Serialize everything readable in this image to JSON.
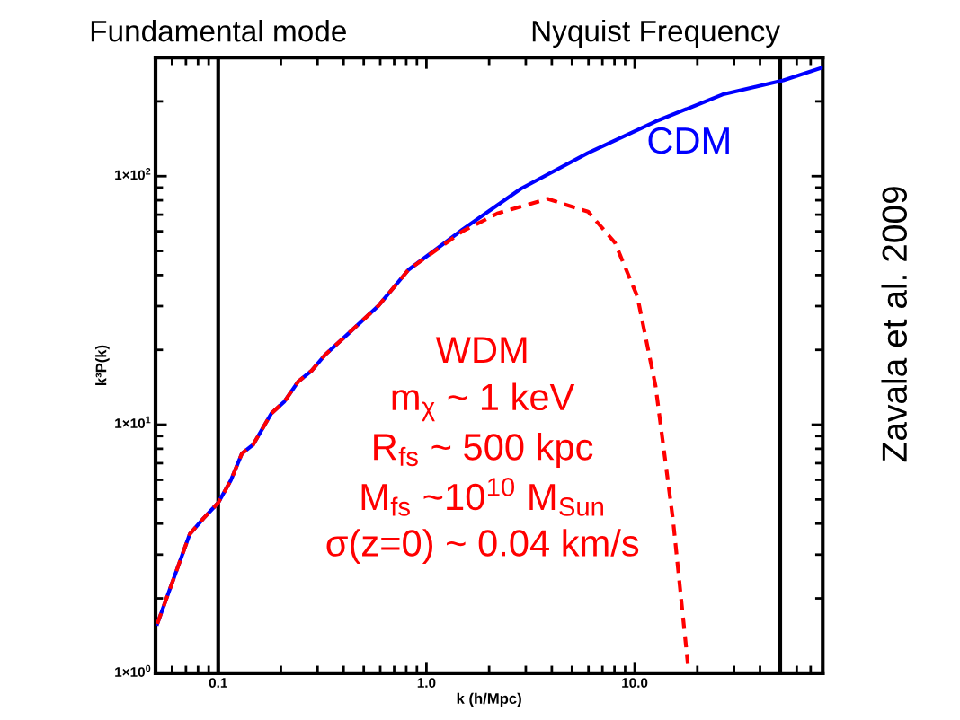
{
  "chart_data": {
    "type": "line",
    "xlabel": "k (h/Mpc)",
    "ylabel": "k³P(k)",
    "log": "xy",
    "xlim": [
      0.05,
      80
    ],
    "ylim": [
      1,
      300
    ],
    "xticks": [
      {
        "value": 0.1,
        "label": "0.1"
      },
      {
        "value": 1.0,
        "label": "1.0"
      },
      {
        "value": 10.0,
        "label": "10.0"
      }
    ],
    "yticks": [
      {
        "value": 1,
        "label": "1×10$^{0}$"
      },
      {
        "value": 10,
        "label": "1×10$^{1}$"
      },
      {
        "value": 100,
        "label": "1×10$^{2}$"
      }
    ],
    "grid": false,
    "series": [
      {
        "name": "CDM",
        "color": "#0000ff",
        "line_style": "solid",
        "x": [
          0.051,
          0.073,
          0.085,
          0.1,
          0.115,
          0.13,
          0.147,
          0.18,
          0.208,
          0.242,
          0.281,
          0.326,
          0.418,
          0.59,
          0.82,
          1.49,
          2.84,
          5.97,
          12.6,
          26.4,
          51.7,
          80
        ],
        "values": [
          1.58,
          3.63,
          4.2,
          4.85,
          5.97,
          7.66,
          8.3,
          11.1,
          12.4,
          14.9,
          16.5,
          19.1,
          23.1,
          30.2,
          42,
          61,
          89,
          124,
          166,
          213,
          243,
          274
        ]
      },
      {
        "name": "WDM",
        "color": "#ff0000",
        "line_style": "dashed",
        "x": [
          0.051,
          0.073,
          0.085,
          0.1,
          0.115,
          0.13,
          0.147,
          0.18,
          0.208,
          0.242,
          0.281,
          0.326,
          0.418,
          0.59,
          0.82,
          1.49,
          2.21,
          3.82,
          5.97,
          8.04,
          10.3,
          12.6,
          15.3,
          18.0
        ],
        "values": [
          1.58,
          3.63,
          4.2,
          4.85,
          5.97,
          7.66,
          8.3,
          11.1,
          12.4,
          14.9,
          16.5,
          19.1,
          23.1,
          30.2,
          42,
          60,
          71,
          81,
          72,
          54,
          32.8,
          14.3,
          4.1,
          1.09
        ]
      }
    ],
    "ref_lines": [
      {
        "axis": "x",
        "value": 0.1,
        "label": "Fundamental mode",
        "color": "#000000"
      },
      {
        "axis": "x",
        "value": 50,
        "label": "Nyquist Frequency",
        "color": "#000000"
      }
    ],
    "annotations": [
      "m$_{χ}$ ~ 1 keV",
      "R$_{fs}$ ~ 500 kpc",
      "M$_{fs}$ ~10$^{10}$ M$_{Sun}$",
      "σ(z=0) ~ 0.04 km/s",
      "Zavala et al. 2009"
    ]
  }
}
